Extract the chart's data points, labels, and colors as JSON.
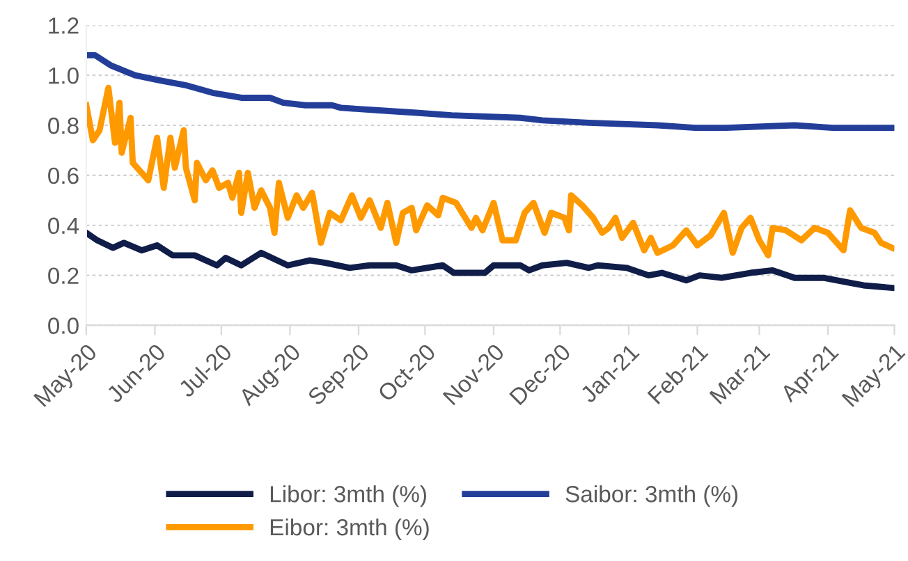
{
  "chart_data": {
    "type": "line",
    "xlim": [
      "2020-05-01",
      "2021-05-01"
    ],
    "xticks": [
      {
        "value": "2020-05-01",
        "label": "May-20"
      },
      {
        "value": "2020-06-01",
        "label": "Jun-20"
      },
      {
        "value": "2020-07-01",
        "label": "Jul-20"
      },
      {
        "value": "2020-08-01",
        "label": "Aug-20"
      },
      {
        "value": "2020-09-01",
        "label": "Sep-20"
      },
      {
        "value": "2020-10-01",
        "label": "Oct-20"
      },
      {
        "value": "2020-11-01",
        "label": "Nov-20"
      },
      {
        "value": "2020-12-01",
        "label": "Dec-20"
      },
      {
        "value": "2021-01-01",
        "label": "Jan-21"
      },
      {
        "value": "2021-02-01",
        "label": "Feb-21"
      },
      {
        "value": "2021-03-01",
        "label": "Mar-21"
      },
      {
        "value": "2021-04-01",
        "label": "Apr-21"
      },
      {
        "value": "2021-05-01",
        "label": "May-21"
      }
    ],
    "ylim": [
      0,
      1.2
    ],
    "yticks": [
      {
        "value": 0,
        "label": "0.0"
      },
      {
        "value": 0.2,
        "label": "0.2"
      },
      {
        "value": 0.4,
        "label": "0.4"
      },
      {
        "value": 0.6,
        "label": "0.6"
      },
      {
        "value": 0.8,
        "label": "0.8"
      },
      {
        "value": 1.0,
        "label": "1.0"
      },
      {
        "value": 1.2,
        "label": "1.2"
      }
    ],
    "grid": "y",
    "legend": "bottom",
    "marker": "none",
    "line_style": "solid",
    "series": [
      {
        "name": "Libor: 3mth (%)",
        "color": "#0f1d48",
        "x": [
          "2020-05-01",
          "2020-05-06",
          "2020-05-13",
          "2020-05-18",
          "2020-05-26",
          "2020-06-02",
          "2020-06-09",
          "2020-06-19",
          "2020-06-29",
          "2020-07-03",
          "2020-07-10",
          "2020-07-19",
          "2020-07-31",
          "2020-08-10",
          "2020-08-17",
          "2020-08-28",
          "2020-09-06",
          "2020-09-18",
          "2020-09-25",
          "2020-10-09",
          "2020-10-14",
          "2020-10-28",
          "2020-11-01",
          "2020-11-13",
          "2020-11-17",
          "2020-11-23",
          "2020-12-04",
          "2020-12-14",
          "2020-12-18",
          "2020-12-31",
          "2021-01-10",
          "2021-01-16",
          "2021-01-27",
          "2021-02-02",
          "2021-02-12",
          "2021-02-25",
          "2021-03-07",
          "2021-03-17",
          "2021-03-30",
          "2021-04-11",
          "2021-04-17",
          "2021-04-30"
        ],
        "values": [
          0.37,
          0.34,
          0.31,
          0.33,
          0.3,
          0.32,
          0.28,
          0.28,
          0.24,
          0.27,
          0.24,
          0.29,
          0.24,
          0.26,
          0.25,
          0.23,
          0.24,
          0.24,
          0.22,
          0.24,
          0.21,
          0.21,
          0.24,
          0.24,
          0.22,
          0.24,
          0.25,
          0.23,
          0.24,
          0.23,
          0.2,
          0.21,
          0.18,
          0.2,
          0.19,
          0.21,
          0.22,
          0.19,
          0.19,
          0.17,
          0.16,
          0.15
        ]
      },
      {
        "name": "Eibor: 3mth (%)",
        "color": "#ff9900",
        "x": [
          "2020-05-01",
          "2020-05-04",
          "2020-05-07",
          "2020-05-11",
          "2020-05-14",
          "2020-05-16",
          "2020-05-17",
          "2020-05-21",
          "2020-05-22",
          "2020-05-29",
          "2020-06-02",
          "2020-06-05",
          "2020-06-08",
          "2020-06-10",
          "2020-06-14",
          "2020-06-15",
          "2020-06-19",
          "2020-06-20",
          "2020-06-24",
          "2020-06-27",
          "2020-06-30",
          "2020-07-04",
          "2020-07-06",
          "2020-07-09",
          "2020-07-10",
          "2020-07-13",
          "2020-07-16",
          "2020-07-19",
          "2020-07-23",
          "2020-07-25",
          "2020-07-27",
          "2020-07-31",
          "2020-08-04",
          "2020-08-07",
          "2020-08-11",
          "2020-08-15",
          "2020-08-19",
          "2020-08-24",
          "2020-08-29",
          "2020-09-02",
          "2020-09-06",
          "2020-09-11",
          "2020-09-14",
          "2020-09-18",
          "2020-09-21",
          "2020-09-25",
          "2020-09-27",
          "2020-10-02",
          "2020-10-07",
          "2020-10-09",
          "2020-10-15",
          "2020-10-22",
          "2020-10-24",
          "2020-10-27",
          "2020-11-01",
          "2020-11-05",
          "2020-11-11",
          "2020-11-15",
          "2020-11-19",
          "2020-11-24",
          "2020-11-27",
          "2020-12-03",
          "2020-12-05",
          "2020-12-06",
          "2020-12-11",
          "2020-12-16",
          "2020-12-20",
          "2020-12-23",
          "2020-12-26",
          "2020-12-29",
          "2021-01-03",
          "2021-01-08",
          "2021-01-11",
          "2021-01-14",
          "2021-01-21",
          "2021-01-27",
          "2021-02-01",
          "2021-02-07",
          "2021-02-13",
          "2021-02-17",
          "2021-02-21",
          "2021-02-25",
          "2021-03-01",
          "2021-03-05",
          "2021-03-07",
          "2021-03-13",
          "2021-03-20",
          "2021-03-26",
          "2021-04-01",
          "2021-04-08",
          "2021-04-11",
          "2021-04-16",
          "2021-04-22",
          "2021-04-25",
          "2021-04-30"
        ],
        "values": [
          0.88,
          0.74,
          0.78,
          0.95,
          0.73,
          0.89,
          0.69,
          0.83,
          0.65,
          0.58,
          0.75,
          0.55,
          0.75,
          0.63,
          0.78,
          0.63,
          0.5,
          0.65,
          0.58,
          0.62,
          0.55,
          0.57,
          0.51,
          0.61,
          0.45,
          0.61,
          0.47,
          0.54,
          0.47,
          0.37,
          0.57,
          0.43,
          0.52,
          0.47,
          0.53,
          0.33,
          0.45,
          0.42,
          0.52,
          0.43,
          0.5,
          0.39,
          0.49,
          0.33,
          0.45,
          0.47,
          0.38,
          0.48,
          0.44,
          0.51,
          0.49,
          0.39,
          0.43,
          0.38,
          0.49,
          0.34,
          0.34,
          0.45,
          0.49,
          0.37,
          0.45,
          0.43,
          0.38,
          0.52,
          0.48,
          0.43,
          0.37,
          0.39,
          0.43,
          0.35,
          0.41,
          0.3,
          0.35,
          0.29,
          0.32,
          0.38,
          0.32,
          0.36,
          0.45,
          0.29,
          0.39,
          0.43,
          0.34,
          0.28,
          0.39,
          0.38,
          0.34,
          0.39,
          0.37,
          0.3,
          0.46,
          0.39,
          0.37,
          0.33,
          0.31
        ]
      },
      {
        "name": "Saibor: 3mth (%)",
        "color": "#233e99",
        "x": [
          "2020-05-01",
          "2020-05-05",
          "2020-05-12",
          "2020-05-23",
          "2020-06-03",
          "2020-06-15",
          "2020-06-27",
          "2020-07-10",
          "2020-07-23",
          "2020-07-29",
          "2020-08-08",
          "2020-08-20",
          "2020-08-24",
          "2020-09-10",
          "2020-09-27",
          "2020-10-13",
          "2020-11-13",
          "2020-11-23",
          "2020-12-14",
          "2021-01-14",
          "2021-01-31",
          "2021-02-14",
          "2021-03-17",
          "2021-04-03",
          "2021-04-13",
          "2021-04-30"
        ],
        "values": [
          1.08,
          1.08,
          1.04,
          1.0,
          0.98,
          0.96,
          0.93,
          0.91,
          0.91,
          0.89,
          0.88,
          0.88,
          0.87,
          0.86,
          0.85,
          0.84,
          0.83,
          0.82,
          0.81,
          0.8,
          0.79,
          0.79,
          0.8,
          0.79,
          0.79,
          0.79
        ]
      }
    ]
  }
}
